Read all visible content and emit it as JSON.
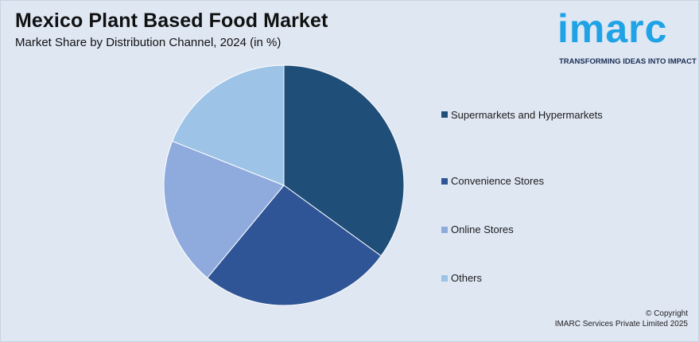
{
  "header": {
    "title": "Mexico Plant Based Food Market",
    "subtitle": "Market Share by Distribution Channel, 2024 (in %)"
  },
  "logo": {
    "wordmark": "imarc",
    "tagline": "TRANSFORMING IDEAS INTO IMPACT"
  },
  "chart_data": {
    "type": "pie",
    "title": "Mexico Plant Based Food Market",
    "subtitle": "Market Share by Distribution Channel, 2024 (in %)",
    "start_angle_deg": 0,
    "direction": "clockwise",
    "categories": [
      "Supermarkets and Hypermarkets",
      "Convenience Stores",
      "Online Stores",
      "Others"
    ],
    "values": [
      35,
      26,
      20,
      19
    ],
    "colors": [
      "#1f4e79",
      "#2f5597",
      "#8faadc",
      "#9dc3e6"
    ],
    "legend_position": "right",
    "data_labels": false
  },
  "legend": {
    "items": [
      {
        "label": "Supermarkets and Hypermarkets",
        "color": "#1f4e79"
      },
      {
        "label": "Convenience Stores",
        "color": "#2f5597"
      },
      {
        "label": "Online Stores",
        "color": "#8faadc"
      },
      {
        "label": "Others",
        "color": "#9dc3e6"
      }
    ]
  },
  "footer": {
    "copyright_line1": "© Copyright",
    "copyright_line2": "IMARC Services Private Limited 2025"
  }
}
